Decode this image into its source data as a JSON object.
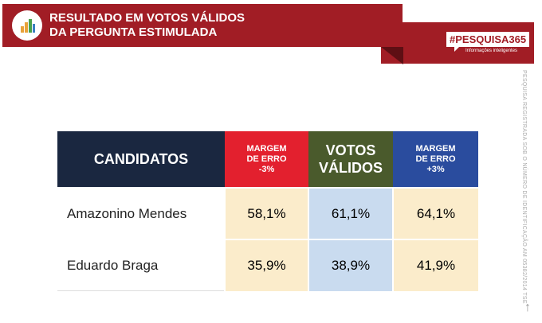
{
  "header": {
    "title_line1": "RESULTADO EM VOTOS VÁLIDOS",
    "title_line2": "DA PERGUNTA ESTIMULADA",
    "icon": "bar-chart-icon"
  },
  "brand": {
    "hashtag": "#PESQUISA365",
    "tagline": "Informações inteligentes"
  },
  "side_note": "PESQUISA REGISTRADA SOB O NÚMERO DE IDENTIFICAÇÃO AM 05382/2014 TSE",
  "table": {
    "headers": [
      "CANDIDATOS",
      "MARGEM DE ERRO -3%",
      "VOTOS VÁLIDOS",
      "MARGEM DE ERRO +3%"
    ],
    "header_lines": {
      "h1": [
        "MARGEM",
        "DE ERRO",
        "-3%"
      ],
      "h2": [
        "VOTOS",
        "VÁLIDOS"
      ],
      "h3": [
        "MARGEM",
        "DE ERRO",
        "+3%"
      ]
    },
    "rows": [
      {
        "name": "Amazonino Mendes",
        "low": "58,1%",
        "valid": "61,1%",
        "high": "64,1%"
      },
      {
        "name": "Eduardo Braga",
        "low": "35,9%",
        "valid": "38,9%",
        "high": "41,9%"
      }
    ]
  },
  "colors": {
    "brand_red": "#a11d25",
    "navy": "#1a2740",
    "red": "#e3202e",
    "olive": "#4a5a2c",
    "blue": "#2a4c9e"
  }
}
